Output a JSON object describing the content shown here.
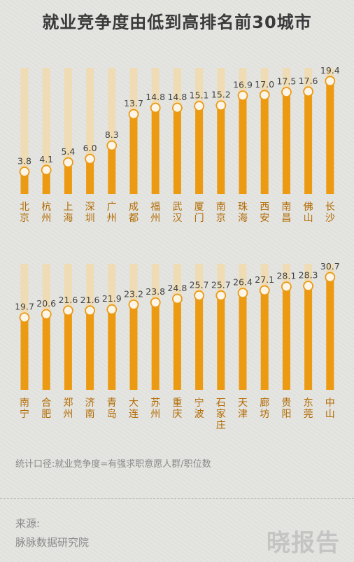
{
  "title": "就业竞争度由低到高排名前30城市",
  "colors": {
    "bar": "#ec9a12",
    "track": "#efdcb4",
    "point_fill": "#fdf6e8",
    "label": "#444444",
    "city": "#b36b00"
  },
  "chart_data": [
    {
      "type": "bar",
      "categories": [
        [
          "北",
          "京"
        ],
        [
          "杭",
          "州"
        ],
        [
          "上",
          "海"
        ],
        [
          "深",
          "圳"
        ],
        [
          "广",
          "州"
        ],
        [
          "成",
          "都"
        ],
        [
          "福",
          "州"
        ],
        [
          "武",
          "汉"
        ],
        [
          "厦",
          "门"
        ],
        [
          "南",
          "京"
        ],
        [
          "珠",
          "海"
        ],
        [
          "西",
          "安"
        ],
        [
          "南",
          "昌"
        ],
        [
          "佛",
          "山"
        ],
        [
          "长",
          "沙"
        ]
      ],
      "values": [
        3.8,
        4.1,
        5.4,
        6.0,
        8.3,
        13.7,
        14.8,
        14.8,
        15.1,
        15.2,
        16.9,
        17.0,
        17.5,
        17.6,
        19.4
      ],
      "labels": [
        "3.8",
        "4.1",
        "5.4",
        "6.0",
        "8.3",
        "13.7",
        "14.8",
        "14.8",
        "15.1",
        "15.2",
        "16.9",
        "17.0",
        "17.5",
        "17.6",
        "19.4"
      ],
      "ylim": [
        0,
        21.67
      ]
    },
    {
      "type": "bar",
      "categories": [
        [
          "南",
          "宁"
        ],
        [
          "合",
          "肥"
        ],
        [
          "郑",
          "州"
        ],
        [
          "济",
          "南"
        ],
        [
          "青",
          "岛"
        ],
        [
          "大",
          "连"
        ],
        [
          "苏",
          "州"
        ],
        [
          "重",
          "庆"
        ],
        [
          "宁",
          "波"
        ],
        [
          "石",
          "家",
          "庄"
        ],
        [
          "天",
          "津"
        ],
        [
          "廊",
          "坊"
        ],
        [
          "贵",
          "阳"
        ],
        [
          "东",
          "莞"
        ],
        [
          "中",
          "山"
        ]
      ],
      "values": [
        19.7,
        20.6,
        21.6,
        21.6,
        21.9,
        23.2,
        23.8,
        24.8,
        25.7,
        25.7,
        26.4,
        27.1,
        28.1,
        28.3,
        30.7
      ],
      "labels": [
        "19.7",
        "20.6",
        "21.6",
        "21.6",
        "21.9",
        "23.2",
        "23.8",
        "24.8",
        "25.7",
        "25.7",
        "26.4",
        "27.1",
        "28.1",
        "28.3",
        "30.7"
      ],
      "ylim": [
        0,
        34.34
      ]
    }
  ],
  "caliber_text": "统计口径:就业竞争度=有强求职意愿人群/职位数",
  "source_label": "来源:",
  "source_name": "脉脉数据研究院",
  "watermark": "晓报告"
}
